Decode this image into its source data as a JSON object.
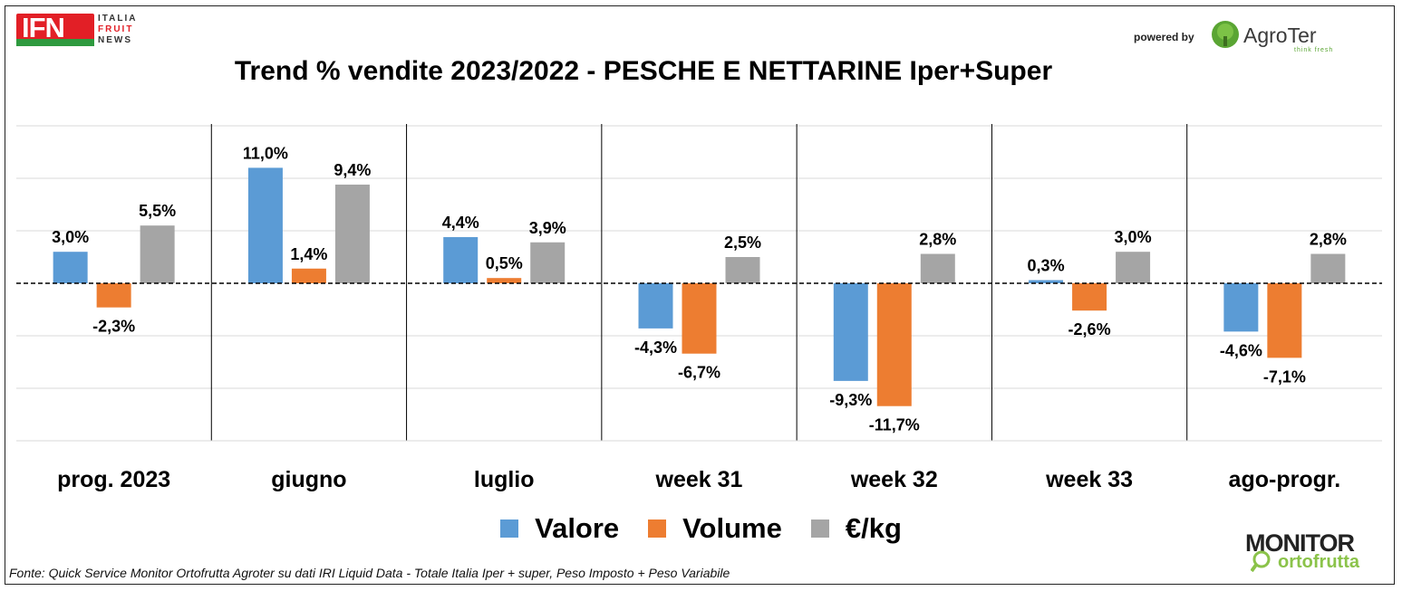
{
  "logos": {
    "ifn": {
      "letters": "IFN",
      "line1": "ITALIA",
      "line2": "FRUIT",
      "line3": "NEWS"
    },
    "powered_by": "powered by",
    "agroter": {
      "name": "AgroTer",
      "tagline": "think fresh"
    },
    "monitor": {
      "name": "MONITOR",
      "sub": "ortofrutta"
    }
  },
  "source_note": "Fonte: Quick Service Monitor Ortofrutta Agroter su dati IRI Liquid Data - Totale Italia Iper + super, Peso Imposto + Peso Variabile",
  "colors": {
    "valore": "#5b9bd5",
    "volume": "#ed7d31",
    "eurkg": "#a5a5a5"
  },
  "chart_data": {
    "type": "bar",
    "title": "Trend % vendite 2023/2022 - PESCHE E NETTARINE Iper+Super",
    "xlabel": "",
    "ylabel": "",
    "categories": [
      "prog. 2023",
      "giugno",
      "luglio",
      "week 31",
      "week 32",
      "week 33",
      "ago-progr."
    ],
    "series": [
      {
        "name": "Valore",
        "values": [
          3.0,
          11.0,
          4.4,
          -4.3,
          -9.3,
          0.3,
          -4.6
        ],
        "labels": [
          "3,0%",
          "11,0%",
          "4,4%",
          "-4,3%",
          "-9,3%",
          "0,3%",
          "-4,6%"
        ]
      },
      {
        "name": "Volume",
        "values": [
          -2.3,
          1.4,
          0.5,
          -6.7,
          -11.7,
          -2.6,
          -7.1
        ],
        "labels": [
          "-2,3%",
          "1,4%",
          "0,5%",
          "-6,7%",
          "-11,7%",
          "-2,6%",
          "-7,1%"
        ]
      },
      {
        "name": "€/kg",
        "values": [
          5.5,
          9.4,
          3.9,
          2.5,
          2.8,
          3.0,
          2.8
        ],
        "labels": [
          "5,5%",
          "9,4%",
          "3,9%",
          "2,5%",
          "2,8%",
          "3,0%",
          "2,8%"
        ]
      }
    ],
    "ylim": [
      -15,
      15
    ],
    "grid": true,
    "zero_line": "dashed",
    "legend": "bottom"
  }
}
